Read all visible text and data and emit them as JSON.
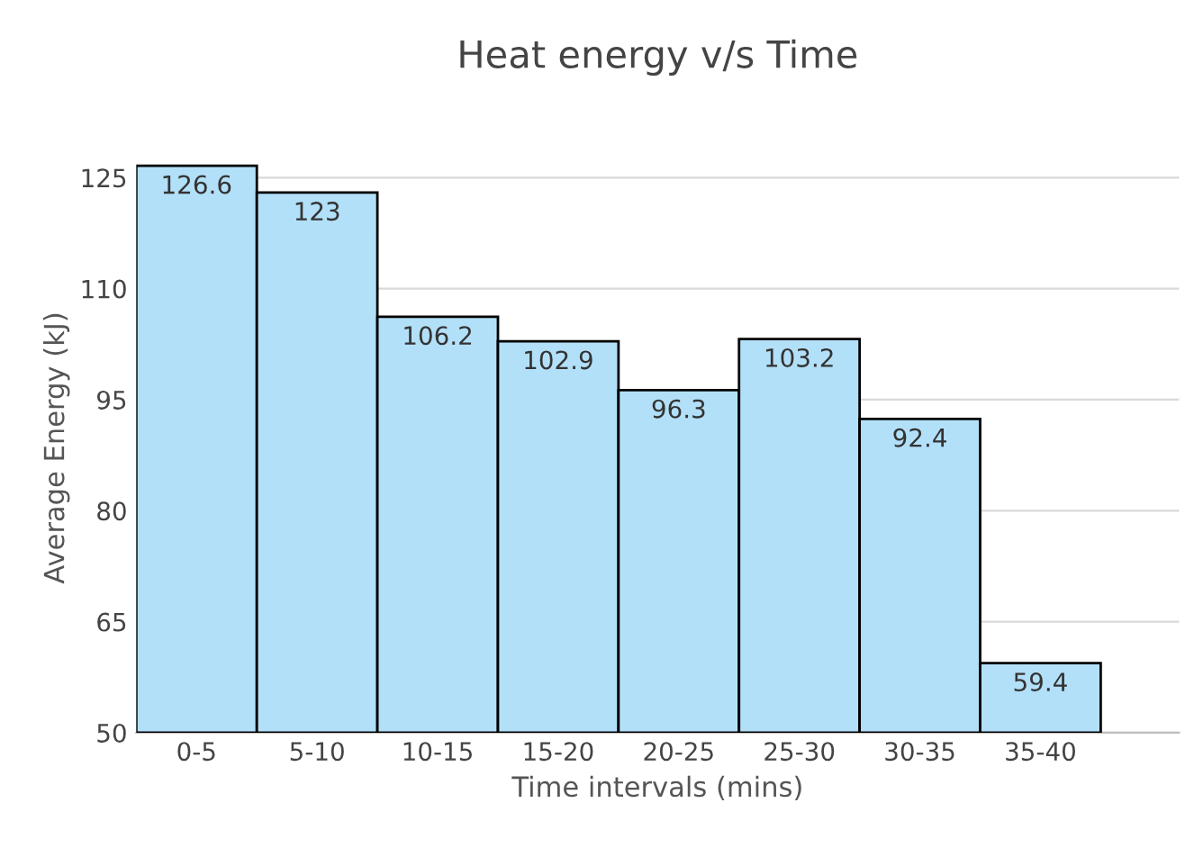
{
  "chart_data": {
    "type": "bar",
    "title": "Heat energy v/s Time",
    "xlabel": "Time intervals (mins)",
    "ylabel": "Average Energy (kJ)",
    "categories": [
      "0-5",
      "5-10",
      "10-15",
      "15-20",
      "20-25",
      "25-30",
      "30-35",
      "35-40"
    ],
    "values": [
      126.6,
      123,
      106.2,
      102.9,
      96.3,
      103.2,
      92.4,
      59.4
    ],
    "color": "#b3e0f9",
    "ylim": [
      50,
      127
    ],
    "yticks": [
      50,
      65,
      80,
      95,
      110,
      125
    ],
    "grid": "y",
    "data_labels": true
  }
}
